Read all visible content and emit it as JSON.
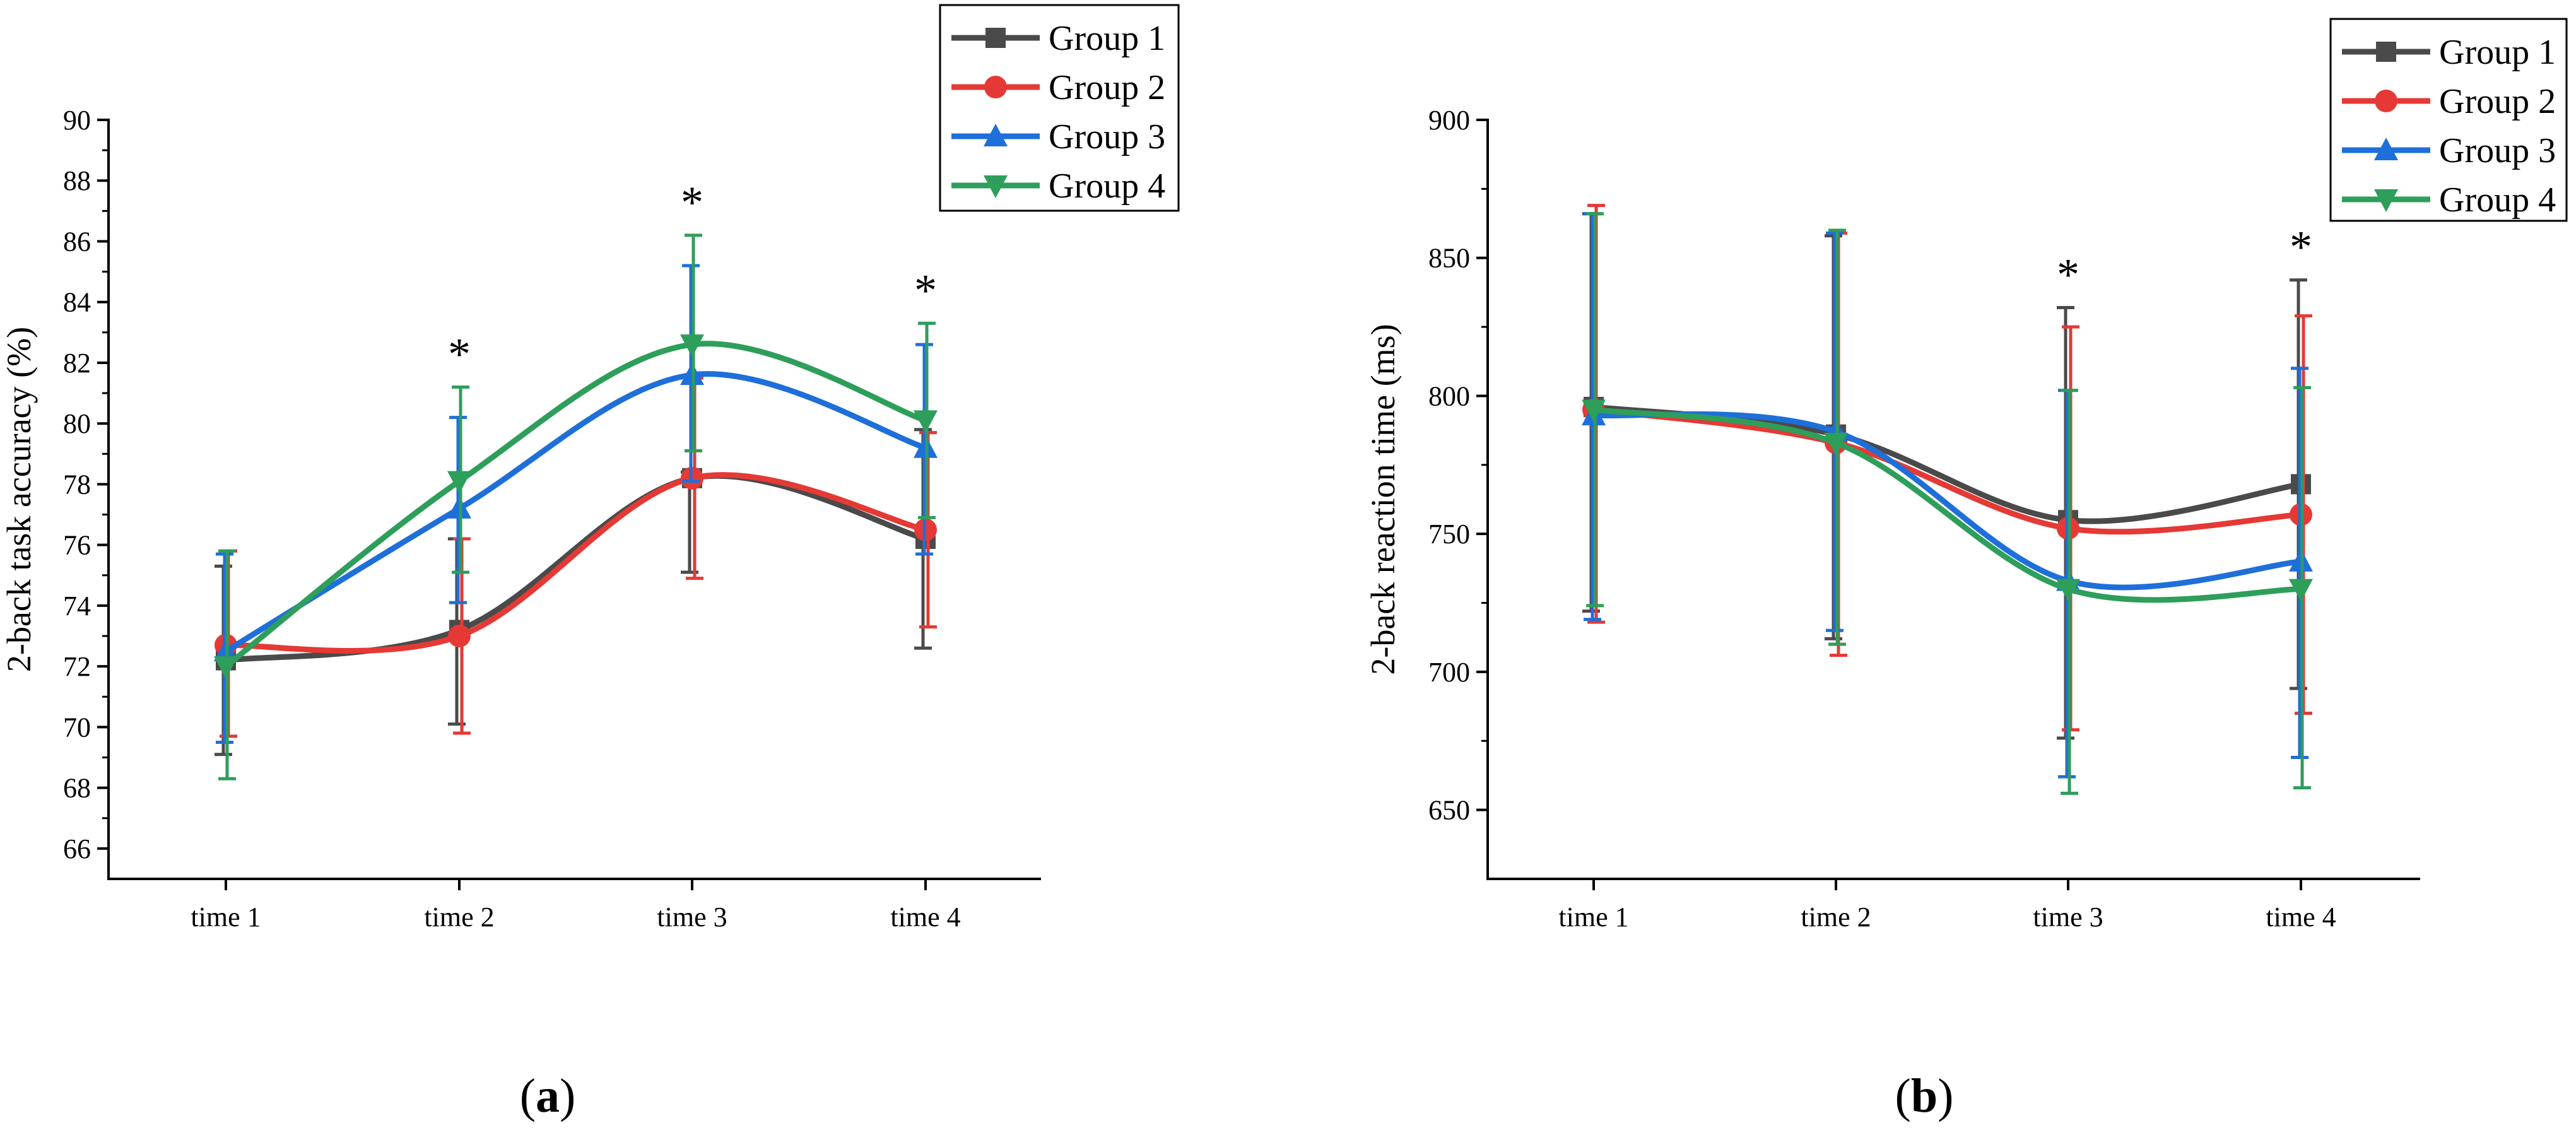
{
  "figure_labels": {
    "a_open": "(",
    "a_letter": "a",
    "a_close": ")",
    "b_open": "(",
    "b_letter": "b",
    "b_close": ")"
  },
  "colors": {
    "Group 1": "#4a4a4a",
    "Group 2": "#e53935",
    "Group 3": "#1e6fd9",
    "Group 4": "#2e9e5b"
  },
  "chart_data": [
    {
      "id": "a",
      "type": "line",
      "title": "",
      "xlabel": "",
      "ylabel": "2-back task accuracy (%)",
      "categories": [
        "time 1",
        "time 2",
        "time 3",
        "time 4"
      ],
      "ylim": [
        65,
        90
      ],
      "yticks": [
        66,
        68,
        70,
        72,
        74,
        76,
        78,
        80,
        82,
        84,
        86,
        88,
        90
      ],
      "legend": "top-right",
      "significance": [
        "",
        "*",
        "*",
        "*"
      ],
      "series": [
        {
          "name": "Group 1",
          "marker": "square",
          "values": [
            72.2,
            73.2,
            78.2,
            76.2
          ],
          "err_low": [
            69.1,
            70.1,
            75.1,
            72.6
          ],
          "err_high": [
            75.3,
            76.2,
            78.4,
            79.8
          ]
        },
        {
          "name": "Group 2",
          "marker": "circle",
          "values": [
            72.7,
            73.0,
            78.2,
            76.5
          ],
          "err_low": [
            69.7,
            69.8,
            74.9,
            73.3
          ],
          "err_high": [
            75.8,
            76.2,
            81.5,
            79.7
          ]
        },
        {
          "name": "Group 3",
          "marker": "triangle-up",
          "values": [
            72.5,
            77.2,
            81.6,
            79.2
          ],
          "err_low": [
            69.5,
            74.1,
            78.1,
            75.7
          ],
          "err_high": [
            75.7,
            80.2,
            85.2,
            82.6
          ]
        },
        {
          "name": "Group 4",
          "marker": "triangle-down",
          "values": [
            72.0,
            78.1,
            82.6,
            80.1
          ],
          "err_low": [
            68.3,
            75.1,
            79.1,
            76.9
          ],
          "err_high": [
            75.8,
            81.2,
            86.2,
            83.3
          ]
        }
      ]
    },
    {
      "id": "b",
      "type": "line",
      "title": "",
      "xlabel": "",
      "ylabel": "2-back reaction time (ms)",
      "categories": [
        "time 1",
        "time 2",
        "time 3",
        "time 4"
      ],
      "ylim": [
        625,
        900
      ],
      "yticks": [
        650,
        700,
        750,
        800,
        850,
        900
      ],
      "legend": "top-right",
      "significance": [
        "",
        "",
        "*",
        "*"
      ],
      "series": [
        {
          "name": "Group 1",
          "marker": "square",
          "values": [
            796,
            786,
            755,
            768
          ],
          "err_low": [
            722,
            712,
            676,
            694
          ],
          "err_high": [
            866,
            858,
            832,
            842
          ]
        },
        {
          "name": "Group 2",
          "marker": "circle",
          "values": [
            795,
            783,
            752,
            757
          ],
          "err_low": [
            718,
            706,
            679,
            685
          ],
          "err_high": [
            869,
            859,
            825,
            829
          ]
        },
        {
          "name": "Group 3",
          "marker": "triangle-up",
          "values": [
            793,
            787,
            733,
            740
          ],
          "err_low": [
            719,
            715,
            662,
            669
          ],
          "err_high": [
            866,
            859,
            802,
            810
          ]
        },
        {
          "name": "Group 4",
          "marker": "triangle-down",
          "values": [
            795,
            783,
            730,
            730
          ],
          "err_low": [
            724,
            710,
            656,
            658
          ],
          "err_high": [
            866,
            860,
            802,
            803
          ]
        }
      ]
    }
  ]
}
